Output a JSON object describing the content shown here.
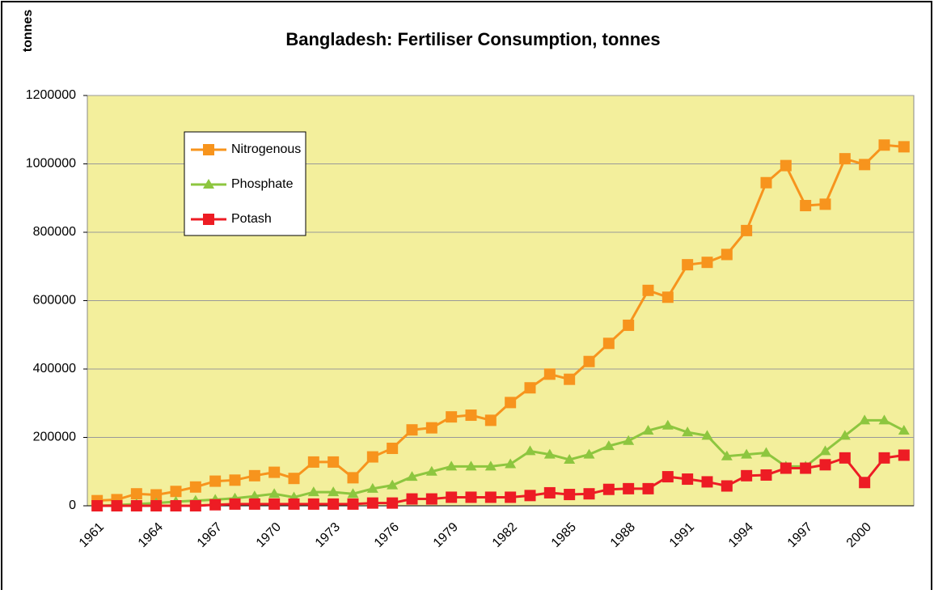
{
  "chart_data": {
    "type": "line",
    "title": "Bangladesh: Fertiliser Consumption, tonnes",
    "y_label": "tonnes",
    "categories": [
      "1961",
      null,
      null,
      "1964",
      null,
      null,
      "1967",
      null,
      null,
      "1970",
      null,
      null,
      "1973",
      null,
      null,
      "1976",
      null,
      null,
      "1979",
      null,
      null,
      "1982",
      null,
      null,
      "1985",
      null,
      null,
      "1988",
      null,
      null,
      "1991",
      null,
      null,
      "1994",
      null,
      null,
      "1997",
      null,
      null,
      "2000",
      null,
      null
    ],
    "series": [
      {
        "name": "Nitrogenous",
        "color": "#f7941d",
        "marker": "square",
        "values": [
          15000,
          18000,
          35000,
          32000,
          42000,
          55000,
          72000,
          75000,
          88000,
          98000,
          80000,
          128000,
          128000,
          82000,
          143000,
          168000,
          222000,
          228000,
          260000,
          265000,
          250000,
          302000,
          345000,
          385000,
          370000,
          422000,
          475000,
          528000,
          630000,
          610000,
          705000,
          712000,
          735000,
          805000,
          945000,
          995000,
          878000,
          882000,
          1015000,
          998000,
          1055000,
          1050000
        ]
      },
      {
        "name": "Phosphate",
        "color": "#8dc63f",
        "marker": "triangle",
        "values": [
          0,
          2000,
          5000,
          8000,
          12000,
          15000,
          18000,
          22000,
          28000,
          35000,
          25000,
          40000,
          40000,
          35000,
          50000,
          60000,
          85000,
          100000,
          115000,
          115000,
          115000,
          122000,
          160000,
          150000,
          135000,
          150000,
          175000,
          190000,
          220000,
          235000,
          215000,
          205000,
          145000,
          150000,
          155000,
          115000,
          115000,
          160000,
          205000,
          250000,
          250000,
          220000
        ]
      },
      {
        "name": "Potash",
        "color": "#ed1c24",
        "marker": "square",
        "values": [
          0,
          0,
          0,
          0,
          0,
          0,
          3000,
          5000,
          5000,
          5000,
          5000,
          5000,
          5000,
          5000,
          8000,
          8000,
          20000,
          20000,
          25000,
          25000,
          25000,
          25000,
          30000,
          38000,
          33000,
          35000,
          48000,
          50000,
          50000,
          85000,
          78000,
          70000,
          58000,
          88000,
          90000,
          110000,
          110000,
          120000,
          140000,
          68000,
          140000,
          148000
        ]
      }
    ],
    "ylim": [
      0,
      1200000
    ],
    "yticks": [
      0,
      200000,
      400000,
      600000,
      800000,
      1000000,
      1200000
    ],
    "grid": true,
    "plot_background": "#f3ef9c",
    "legend": "upper-left"
  }
}
